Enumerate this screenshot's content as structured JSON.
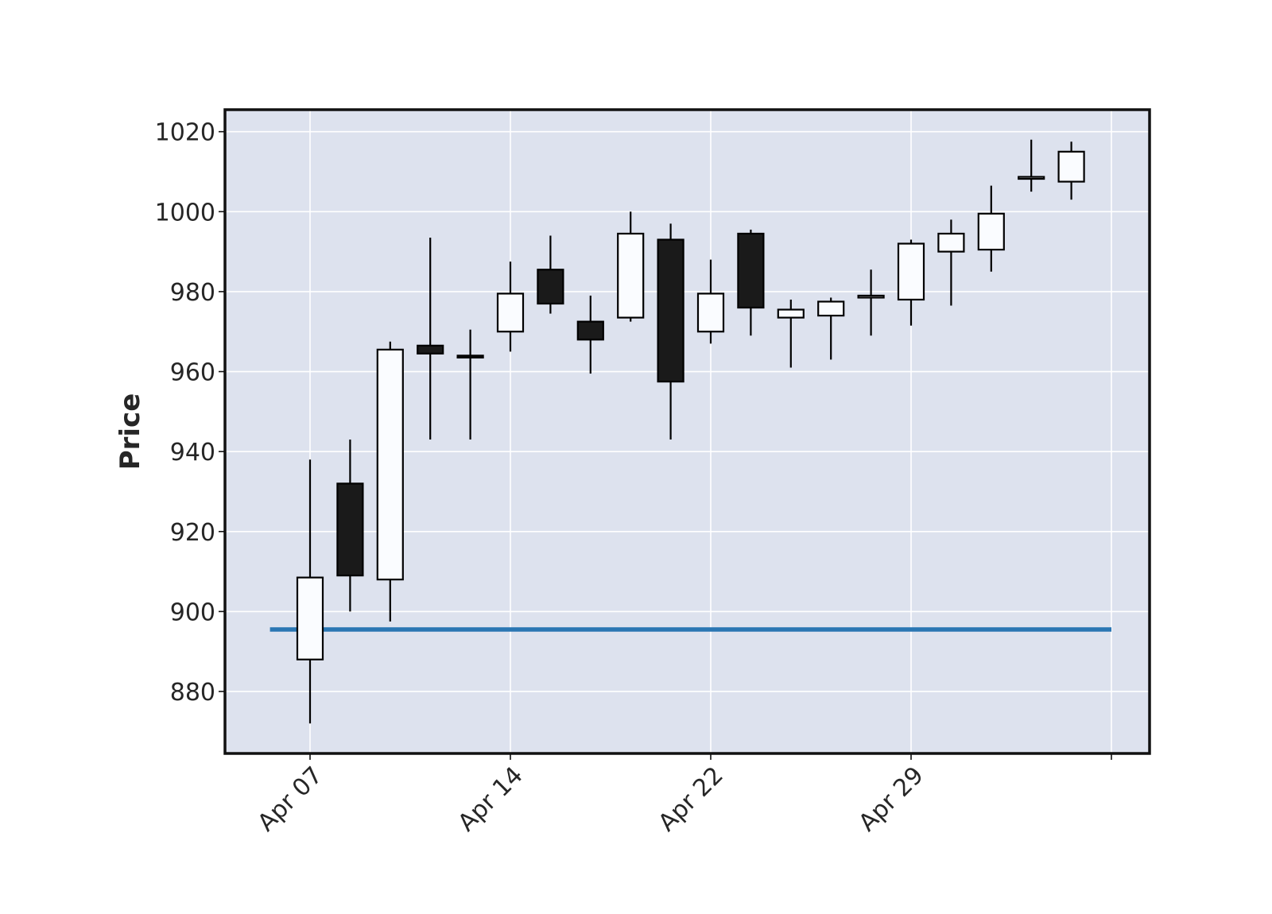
{
  "chart_data": {
    "type": "candlestick",
    "ylabel": "Price",
    "ylim": [
      864.5,
      1025.5
    ],
    "y_ticks": [
      880,
      900,
      920,
      940,
      960,
      980,
      1000,
      1020
    ],
    "x_tick_labels": [
      {
        "label": "Apr 07",
        "index": 0
      },
      {
        "label": "Apr 14",
        "index": 5
      },
      {
        "label": "Apr 22",
        "index": 10
      },
      {
        "label": "Apr 29",
        "index": 15
      },
      {
        "label": "",
        "index": 20
      }
    ],
    "grid": true,
    "colors": {
      "background": "#dde2ee",
      "grid": "#ffffff",
      "up_body": "#fafcff",
      "down_body": "#1a1a1a",
      "edge": "#000000",
      "reference_line": "#2a76b3"
    },
    "reference_line": {
      "value": 895.5,
      "from_index": -1,
      "to_index": 20
    },
    "candles": [
      {
        "open": 888.0,
        "high": 938.0,
        "low": 872.0,
        "close": 908.5
      },
      {
        "open": 932.0,
        "high": 943.0,
        "low": 900.0,
        "close": 909.0
      },
      {
        "open": 908.0,
        "high": 967.5,
        "low": 897.5,
        "close": 965.5
      },
      {
        "open": 966.5,
        "high": 993.5,
        "low": 943.0,
        "close": 964.5
      },
      {
        "open": 964.0,
        "high": 970.5,
        "low": 943.0,
        "close": 963.5
      },
      {
        "open": 970.0,
        "high": 987.5,
        "low": 965.0,
        "close": 979.5
      },
      {
        "open": 985.5,
        "high": 994.0,
        "low": 974.5,
        "close": 977.0
      },
      {
        "open": 972.5,
        "high": 979.0,
        "low": 959.5,
        "close": 968.0
      },
      {
        "open": 973.5,
        "high": 1000.0,
        "low": 972.5,
        "close": 994.5
      },
      {
        "open": 993.0,
        "high": 997.0,
        "low": 943.0,
        "close": 957.5
      },
      {
        "open": 970.0,
        "high": 988.0,
        "low": 967.0,
        "close": 979.5
      },
      {
        "open": 994.5,
        "high": 995.5,
        "low": 969.0,
        "close": 976.0
      },
      {
        "open": 973.5,
        "high": 978.0,
        "low": 961.0,
        "close": 975.5
      },
      {
        "open": 974.0,
        "high": 978.5,
        "low": 963.0,
        "close": 977.5
      },
      {
        "open": 978.5,
        "high": 985.5,
        "low": 969.0,
        "close": 979.0
      },
      {
        "open": 978.0,
        "high": 993.0,
        "low": 971.5,
        "close": 992.0
      },
      {
        "open": 990.0,
        "high": 998.0,
        "low": 976.5,
        "close": 994.5
      },
      {
        "open": 990.5,
        "high": 1006.5,
        "low": 985.0,
        "close": 999.5
      },
      {
        "open": 1008.5,
        "high": 1018.0,
        "low": 1005.0,
        "close": 1008.5
      },
      {
        "open": 1007.5,
        "high": 1017.5,
        "low": 1003.0,
        "close": 1015.0
      }
    ]
  }
}
